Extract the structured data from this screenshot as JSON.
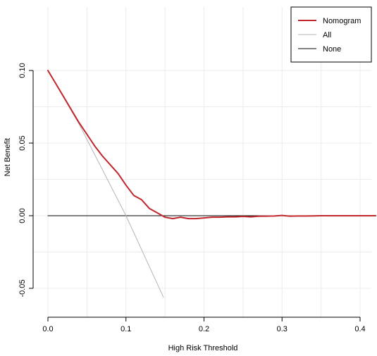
{
  "chart_data": {
    "type": "line",
    "title": "",
    "xlabel": "High Risk Threshold",
    "ylabel": "Net Benefit",
    "xlim": [
      0,
      0.42
    ],
    "ylim": [
      -0.055,
      0.103
    ],
    "x_ticks": [
      "0.0",
      "0.1",
      "0.2",
      "0.3",
      "0.4"
    ],
    "y_ticks": [
      "-0.05",
      "0.00",
      "0.05",
      "0.10"
    ],
    "x_tick_values": [
      0,
      0.1,
      0.2,
      0.3,
      0.4
    ],
    "y_tick_values": [
      -0.05,
      0,
      0.05,
      0.1
    ],
    "grid": true,
    "legend_position": "top-right",
    "series": [
      {
        "name": "Nomogram",
        "color": "#c0282d",
        "x": [
          0,
          0.01,
          0.02,
          0.03,
          0.04,
          0.05,
          0.06,
          0.07,
          0.08,
          0.09,
          0.1,
          0.11,
          0.12,
          0.13,
          0.14,
          0.15,
          0.16,
          0.17,
          0.18,
          0.19,
          0.2,
          0.21,
          0.22,
          0.23,
          0.24,
          0.25,
          0.26,
          0.27,
          0.28,
          0.29,
          0.3,
          0.31,
          0.32,
          0.33,
          0.34,
          0.35,
          0.36,
          0.37,
          0.38,
          0.39,
          0.4,
          0.41,
          0.42
        ],
        "y": [
          0.1,
          0.091,
          0.082,
          0.073,
          0.064,
          0.056,
          0.048,
          0.041,
          0.035,
          0.029,
          0.021,
          0.014,
          0.011,
          0.005,
          0.002,
          -0.001,
          -0.002,
          -0.001,
          -0.002,
          -0.002,
          -0.0015,
          -0.001,
          -0.001,
          -0.0008,
          -0.0008,
          -0.0005,
          -0.0008,
          -0.0004,
          -0.0003,
          -0.0002,
          0.0002,
          -0.0003,
          -0.0002,
          -0.0002,
          -0.0001,
          0.0,
          0.0,
          0.0,
          0.0,
          0.0,
          0.0,
          0.0,
          0.0
        ]
      },
      {
        "name": "All",
        "color": "#b5b5b5",
        "x": [
          0,
          0.04,
          0.1,
          0.148
        ],
        "y": [
          0.1,
          0.063,
          0.0,
          -0.056
        ]
      },
      {
        "name": "None",
        "color": "#000000",
        "x": [
          0,
          0.42
        ],
        "y": [
          0,
          0
        ]
      }
    ]
  }
}
